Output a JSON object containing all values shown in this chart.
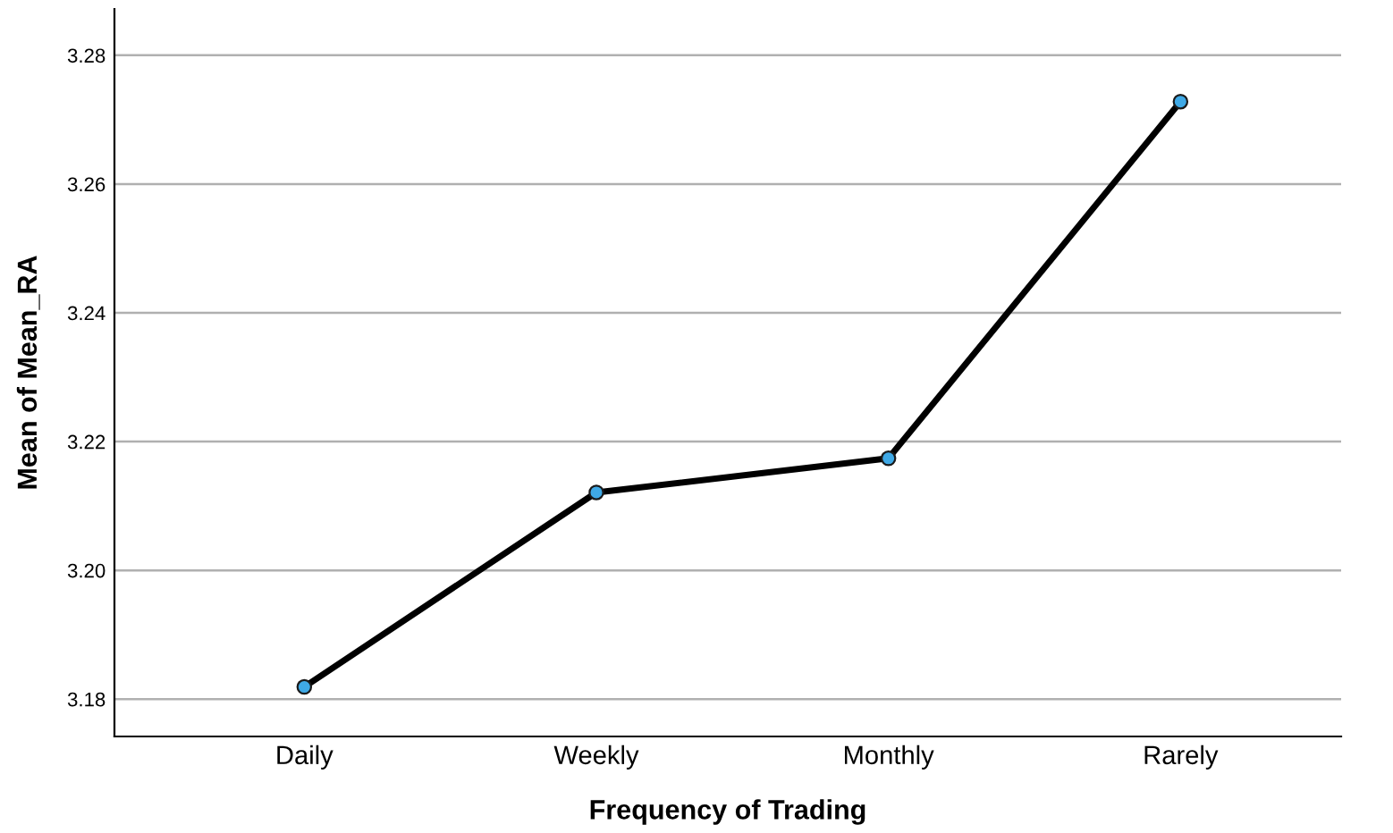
{
  "chart_data": {
    "type": "line",
    "xlabel": "Frequency of Trading",
    "ylabel": "Mean of Mean_RA",
    "categories": [
      "Daily",
      "Weekly",
      "Monthly",
      "Rarely"
    ],
    "series": [
      {
        "color": "#000000",
        "values": [
          3.1819,
          3.2121,
          3.2174,
          3.2728
        ]
      }
    ],
    "ylim": [
      3.1742,
      3.2872
    ],
    "yticks": [
      {
        "value": 3.18,
        "label": "3.18"
      },
      {
        "value": 3.2,
        "label": "3.20"
      },
      {
        "value": 3.22,
        "label": "3.22"
      },
      {
        "value": 3.24,
        "label": "3.24"
      },
      {
        "value": 3.26,
        "label": "3.26"
      },
      {
        "value": 3.28,
        "label": "3.28"
      }
    ],
    "grid": "y",
    "marker": "circle",
    "line_style": "solid",
    "legend": false
  }
}
